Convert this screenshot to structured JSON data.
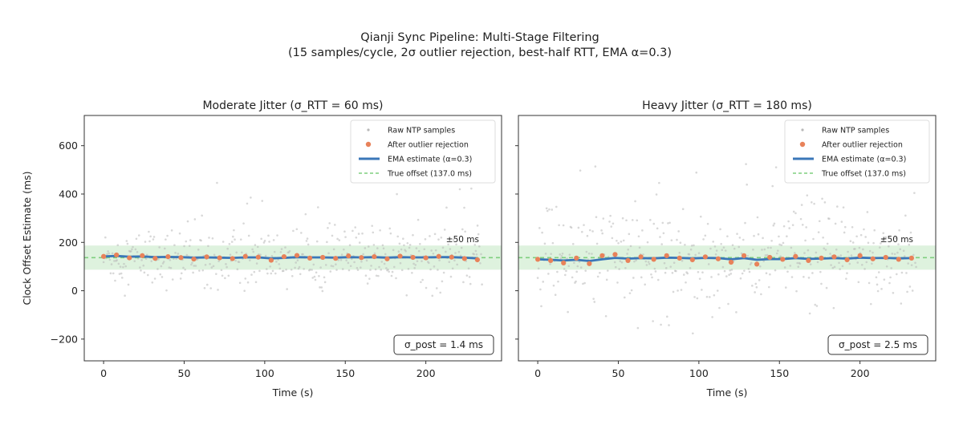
{
  "figure": {
    "title_line1": "Qianji Sync Pipeline: Multi-Stage Filtering",
    "title_line2": "(15 samples/cycle, 2σ outlier rejection, best-half RTT, EMA α=0.3)"
  },
  "colors": {
    "raw": "#b8b8b8",
    "filtered": "#e8825a",
    "ema": "#3b77b8",
    "true_line": "#7fcf7f",
    "band": "#d6efd6"
  },
  "chart_data": [
    {
      "type": "scatter",
      "title": "Moderate Jitter (σ_RTT = 60 ms)",
      "xlabel": "Time (s)",
      "ylabel": "Clock Offset Estimate (ms)",
      "xlim": [
        -12,
        247
      ],
      "ylim": [
        -290,
        725
      ],
      "xticks": [
        0,
        50,
        100,
        150,
        200
      ],
      "yticks": [
        -200,
        0,
        200,
        400,
        600
      ],
      "true_offset": 137.0,
      "band_halfwidth": 50,
      "band_label": "±50 ms",
      "annotation": "σ_post = 1.4 ms",
      "legend": {
        "position": "top-right",
        "entries": [
          "Raw NTP samples",
          "After outlier rejection",
          "EMA estimate (α=0.3)",
          "True offset (137.0 ms)"
        ]
      },
      "series": [
        {
          "name": "After outlier rejection",
          "x": [
            0,
            8,
            16,
            24,
            32,
            40,
            48,
            56,
            64,
            72,
            80,
            88,
            96,
            104,
            112,
            120,
            128,
            136,
            144,
            152,
            160,
            168,
            176,
            184,
            192,
            200,
            208,
            216,
            224,
            232
          ],
          "y": [
            142,
            148,
            136,
            145,
            134,
            141,
            137,
            131,
            140,
            136,
            133,
            142,
            139,
            126,
            141,
            146,
            135,
            138,
            134,
            144,
            137,
            141,
            132,
            143,
            138,
            136,
            142,
            139,
            133,
            128
          ]
        },
        {
          "name": "EMA estimate (α=0.3)",
          "x": [
            0,
            8,
            16,
            24,
            32,
            40,
            48,
            56,
            64,
            72,
            80,
            88,
            96,
            104,
            112,
            120,
            128,
            136,
            144,
            152,
            160,
            168,
            176,
            184,
            192,
            200,
            208,
            216,
            224,
            232
          ],
          "y": [
            142,
            144,
            141,
            142,
            139,
            140,
            139,
            137,
            138,
            137,
            136,
            138,
            138,
            134,
            136,
            139,
            138,
            138,
            137,
            139,
            138,
            139,
            137,
            139,
            138,
            138,
            139,
            139,
            137,
            134
          ]
        }
      ]
    },
    {
      "type": "scatter",
      "title": "Heavy Jitter (σ_RTT = 180 ms)",
      "xlabel": "Time (s)",
      "ylabel": "",
      "xlim": [
        -12,
        247
      ],
      "ylim": [
        -290,
        725
      ],
      "xticks": [
        0,
        50,
        100,
        150,
        200
      ],
      "yticks": [
        -200,
        0,
        200,
        400,
        600
      ],
      "true_offset": 137.0,
      "band_halfwidth": 50,
      "band_label": "±50 ms",
      "annotation": "σ_post = 2.5 ms",
      "legend": {
        "position": "top-right",
        "entries": [
          "Raw NTP samples",
          "After outlier rejection",
          "EMA estimate (α=0.3)",
          "True offset (137.0 ms)"
        ]
      },
      "series": [
        {
          "name": "After outlier rejection",
          "x": [
            0,
            8,
            16,
            24,
            32,
            40,
            48,
            56,
            64,
            72,
            80,
            88,
            96,
            104,
            112,
            120,
            128,
            136,
            144,
            152,
            160,
            168,
            176,
            184,
            192,
            200,
            208,
            216,
            224,
            232
          ],
          "y": [
            130,
            125,
            115,
            135,
            112,
            145,
            150,
            125,
            140,
            130,
            145,
            135,
            128,
            140,
            132,
            118,
            145,
            110,
            138,
            130,
            142,
            125,
            135,
            140,
            128,
            145,
            132,
            138,
            130,
            135
          ]
        },
        {
          "name": "EMA estimate (α=0.3)",
          "x": [
            0,
            8,
            16,
            24,
            32,
            40,
            48,
            56,
            64,
            72,
            80,
            88,
            96,
            104,
            112,
            120,
            128,
            136,
            144,
            152,
            160,
            168,
            176,
            184,
            192,
            200,
            208,
            216,
            224,
            232
          ],
          "y": [
            130,
            128,
            125,
            128,
            123,
            130,
            136,
            133,
            135,
            134,
            137,
            136,
            134,
            136,
            135,
            130,
            135,
            128,
            131,
            131,
            135,
            132,
            133,
            135,
            133,
            137,
            135,
            136,
            134,
            135
          ]
        }
      ]
    }
  ]
}
